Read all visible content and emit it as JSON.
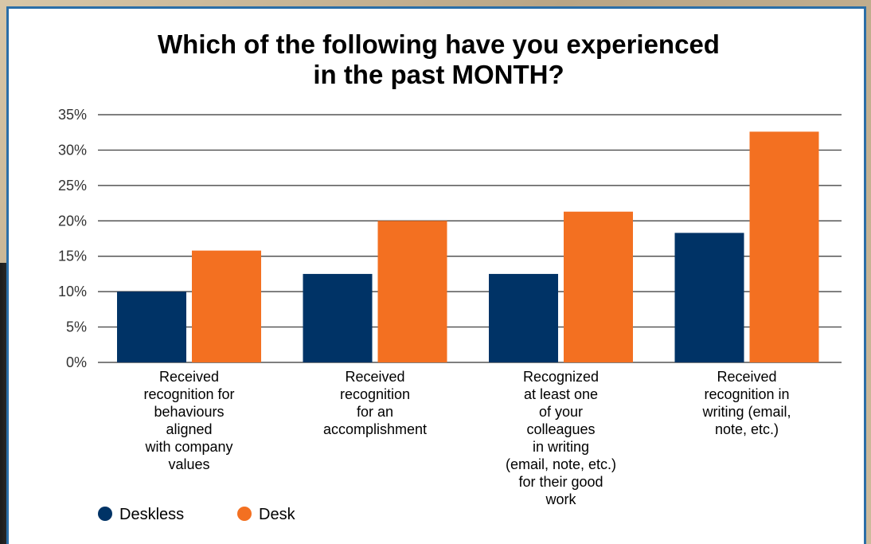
{
  "chart_data": {
    "type": "bar",
    "title_lines": [
      "Which of the following have you experienced",
      "in the past MONTH?"
    ],
    "categories": [
      [
        "Received",
        "recognition for",
        "behaviours",
        "aligned",
        "with company",
        "values"
      ],
      [
        "Received",
        "recognition",
        "for an",
        "accomplishment"
      ],
      [
        "Recognized",
        "at least one",
        "of your",
        "colleagues",
        "in writing",
        "(email, note, etc.)",
        "for their good",
        "work"
      ],
      [
        "Received",
        "recognition in",
        "writing (email,",
        "note, etc.)"
      ]
    ],
    "series": [
      {
        "name": "Deskless",
        "color": "#003366",
        "values": [
          10,
          12.5,
          12.5,
          18.3
        ]
      },
      {
        "name": "Desk",
        "color": "#f37021",
        "values": [
          15.8,
          20,
          21.3,
          32.6
        ]
      }
    ],
    "ylim": [
      0,
      35
    ],
    "yticks": [
      "0%",
      "5%",
      "10%",
      "15%",
      "20%",
      "25%",
      "30%",
      "35%"
    ],
    "ytick_values": [
      0,
      5,
      10,
      15,
      20,
      25,
      30,
      35
    ],
    "grid": true,
    "legend_position": "bottom-left"
  }
}
